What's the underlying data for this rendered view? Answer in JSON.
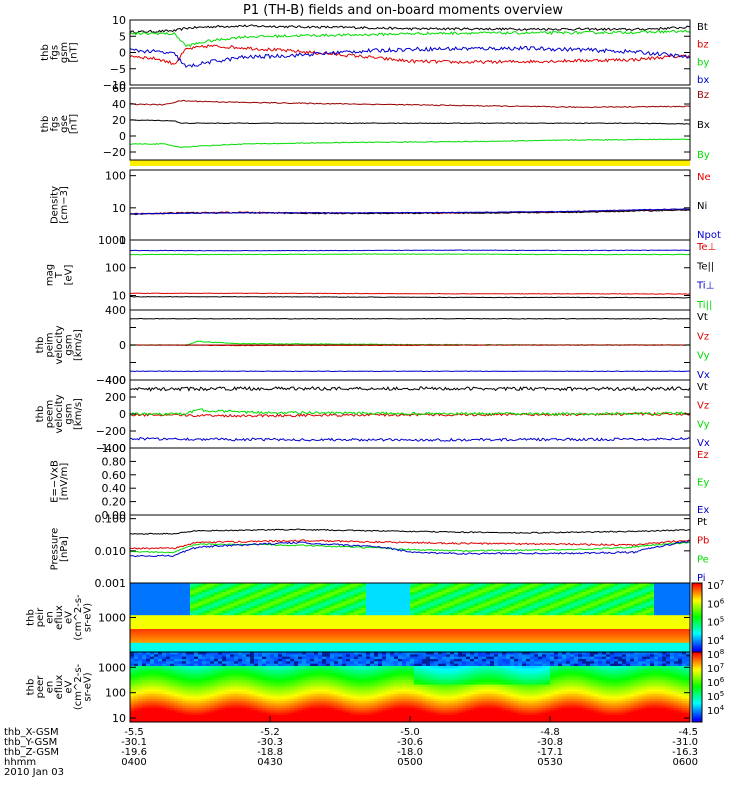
{
  "title": "P1 (TH-B) fields and on-board moments overview",
  "colors": {
    "black": "#000000",
    "red": "#e00000",
    "green": "#00dd00",
    "blue": "#0000cc",
    "darkred": "#990000",
    "yellow": "#ffee00"
  },
  "chart_data": [
    {
      "type": "line",
      "id": "fgs-gsm",
      "ylabel_lines": [
        "thb",
        "fgs",
        "gsm",
        "[nT]"
      ],
      "ylim": [
        -10,
        10
      ],
      "ticks": [
        -10,
        -5,
        0,
        5,
        10
      ],
      "tick_labels": [
        "−10",
        "−5",
        "0",
        "5",
        "10"
      ],
      "legend": [
        "Bt",
        "bz",
        "by",
        "bx"
      ],
      "series": [
        {
          "name": "Bt",
          "color": "black",
          "x": [
            0,
            0.05,
            0.08,
            0.1,
            0.14,
            0.2,
            0.3,
            0.4,
            0.5,
            0.6,
            0.7,
            0.8,
            0.9,
            0.95,
            1
          ],
          "y": [
            6.3,
            6.5,
            6.7,
            7.5,
            7.9,
            8.2,
            7.9,
            7.7,
            7.3,
            7.3,
            7.2,
            7.2,
            7.1,
            7.4,
            7.8
          ],
          "noise": 0.35
        },
        {
          "name": "bz",
          "color": "red",
          "x": [
            0,
            0.05,
            0.08,
            0.1,
            0.14,
            0.2,
            0.3,
            0.4,
            0.5,
            0.6,
            0.7,
            0.8,
            0.9,
            0.95,
            1
          ],
          "y": [
            -1,
            -2,
            -3.5,
            1,
            2,
            1.5,
            0.3,
            -1,
            -2.7,
            -3,
            -2.8,
            -2.5,
            -2.2,
            -1.5,
            -1
          ],
          "noise": 0.5
        },
        {
          "name": "by",
          "color": "green",
          "x": [
            0,
            0.05,
            0.08,
            0.1,
            0.14,
            0.2,
            0.3,
            0.4,
            0.5,
            0.6,
            0.7,
            0.8,
            0.9,
            0.95,
            1
          ],
          "y": [
            5.7,
            5.9,
            5.7,
            2,
            3.5,
            4.8,
            5.2,
            5.4,
            5.8,
            6,
            6,
            6.1,
            6.2,
            6.4,
            6.5
          ],
          "noise": 0.4
        },
        {
          "name": "bx",
          "color": "blue",
          "x": [
            0,
            0.05,
            0.08,
            0.1,
            0.14,
            0.2,
            0.3,
            0.4,
            0.5,
            0.6,
            0.7,
            0.8,
            0.9,
            0.95,
            1
          ],
          "y": [
            0.7,
            0.2,
            -0.5,
            -4.5,
            -3,
            -1.5,
            -0.8,
            0.3,
            1,
            1.2,
            1.3,
            0.9,
            0.2,
            -0.5,
            -1.5
          ],
          "noise": 0.6
        }
      ]
    },
    {
      "type": "line",
      "id": "fgs-gse",
      "ylabel_lines": [
        "thb",
        "fgs",
        "gse",
        "[nT]"
      ],
      "ylim": [
        -30,
        60
      ],
      "ticks": [
        -20,
        0,
        20,
        40,
        60
      ],
      "tick_labels": [
        "−20",
        "0",
        "20",
        "40",
        "60"
      ],
      "legend": [
        "Bz",
        "Bx",
        "By"
      ],
      "series": [
        {
          "name": "Bz",
          "color": "darkred",
          "x": [
            0,
            0.06,
            0.09,
            0.14,
            0.2,
            0.4,
            0.6,
            0.8,
            1
          ],
          "y": [
            40,
            39,
            44,
            43,
            42,
            40,
            38,
            36,
            37
          ],
          "noise": 0.6
        },
        {
          "name": "Bx",
          "color": "black",
          "x": [
            0,
            0.08,
            0.09,
            0.15,
            0.3,
            0.5,
            0.7,
            0.9,
            1
          ],
          "y": [
            20,
            19,
            16,
            16,
            16,
            16,
            16,
            16,
            15
          ],
          "noise": 0.4
        },
        {
          "name": "By",
          "color": "green",
          "x": [
            0,
            0.06,
            0.09,
            0.14,
            0.2,
            0.4,
            0.6,
            0.8,
            1
          ],
          "y": [
            -10,
            -10,
            -14,
            -12,
            -10,
            -8,
            -7,
            -5,
            -4
          ],
          "noise": 0.5
        }
      ]
    },
    {
      "type": "log-line",
      "id": "density",
      "ylabel_lines": [
        "Density",
        "[cm−3]"
      ],
      "ylim": [
        1,
        150
      ],
      "ticks": [
        1,
        10,
        100
      ],
      "tick_labels": [
        "1",
        "10",
        "100"
      ],
      "legend": [
        "Ne",
        "Ni",
        "Npot"
      ],
      "series": [
        {
          "name": "Ne",
          "color": "red",
          "x": [
            0,
            0.1,
            0.2,
            0.4,
            0.6,
            0.8,
            0.95,
            1
          ],
          "y": [
            6.5,
            7.0,
            7.2,
            6.8,
            7.0,
            7.5,
            8.5,
            8.8
          ],
          "noise": 0.05
        },
        {
          "name": "Ni",
          "color": "black",
          "x": [
            0,
            0.1,
            0.2,
            0.4,
            0.6,
            0.8,
            0.95,
            1
          ],
          "y": [
            6.3,
            6.9,
            7.0,
            6.7,
            6.9,
            7.3,
            8.3,
            8.6
          ],
          "noise": 0.04
        },
        {
          "name": "Npot",
          "color": "blue",
          "x": [
            0,
            0.1,
            0.2,
            0.4,
            0.6,
            0.8,
            0.95,
            1
          ],
          "y": [
            6.5,
            6.8,
            7.0,
            7.0,
            7.2,
            7.8,
            9.0,
            9.2
          ],
          "noise": 0.02
        }
      ]
    },
    {
      "type": "log-line",
      "id": "temperature",
      "ylabel_lines": [
        "mag",
        "T",
        "[eV]"
      ],
      "ylim": [
        3,
        1000
      ],
      "ticks": [
        10,
        100,
        1000
      ],
      "tick_labels": [
        "10",
        "100",
        "1000"
      ],
      "legend": [
        "Te⊥",
        "Te||",
        "Ti⊥",
        "Ti||"
      ],
      "series": [
        {
          "name": "Ti⊥",
          "color": "blue",
          "x": [
            0,
            0.2,
            0.4,
            0.6,
            0.8,
            1
          ],
          "y": [
            420,
            410,
            420,
            430,
            420,
            430
          ],
          "noise": 0.02
        },
        {
          "name": "Ti||",
          "color": "green",
          "x": [
            0,
            0.2,
            0.4,
            0.6,
            0.8,
            1
          ],
          "y": [
            300,
            300,
            310,
            310,
            300,
            300
          ],
          "noise": 0.02
        },
        {
          "name": "Te⊥",
          "color": "red",
          "x": [
            0,
            0.2,
            0.4,
            0.6,
            0.8,
            1
          ],
          "y": [
            12,
            12,
            11.8,
            11.5,
            11.5,
            11.3
          ],
          "noise": 0.02
        },
        {
          "name": "Te||",
          "color": "black",
          "x": [
            0,
            0.2,
            0.4,
            0.6,
            0.8,
            1
          ],
          "y": [
            9,
            9,
            8.8,
            8.5,
            8.5,
            8.3
          ],
          "noise": 0.02
        }
      ]
    },
    {
      "type": "line",
      "id": "peim-velocity",
      "ylabel_lines": [
        "thb",
        "peim",
        "velocity",
        "gsm",
        "[km/s]"
      ],
      "ylim": [
        -400,
        400
      ],
      "ticks": [
        -400,
        -200,
        0,
        200,
        400
      ],
      "tick_labels": [
        "−400",
        "",
        "0",
        "",
        "400"
      ],
      "legend": [
        "Vt",
        "Vz",
        "Vy",
        "Vx"
      ],
      "series": [
        {
          "name": "Vt",
          "color": "black",
          "x": [
            0,
            0.2,
            0.5,
            0.8,
            1
          ],
          "y": [
            300,
            300,
            300,
            300,
            300
          ],
          "noise": 3
        },
        {
          "name": "Vz",
          "color": "red",
          "x": [
            0,
            0.2,
            0.5,
            0.8,
            1
          ],
          "y": [
            0,
            -5,
            -3,
            0,
            0
          ],
          "noise": 3
        },
        {
          "name": "Vy",
          "color": "green",
          "x": [
            0,
            0.1,
            0.12,
            0.2,
            0.5,
            0.8,
            1
          ],
          "y": [
            0,
            0,
            40,
            15,
            5,
            0,
            0
          ],
          "noise": 4
        },
        {
          "name": "Vx",
          "color": "blue",
          "x": [
            0,
            0.2,
            0.5,
            0.8,
            1
          ],
          "y": [
            -300,
            -300,
            -300,
            -300,
            -300
          ],
          "noise": 3
        }
      ]
    },
    {
      "type": "line",
      "id": "peem-velocity",
      "ylabel_lines": [
        "thb",
        "peem",
        "velocity",
        "gsm",
        "[km/s]"
      ],
      "ylim": [
        -400,
        400
      ],
      "ticks": [
        -400,
        -200,
        0,
        200,
        400
      ],
      "tick_labels": [
        "−400",
        "−200",
        "0",
        "200",
        "400"
      ],
      "legend": [
        "Vt",
        "Vz",
        "Vy",
        "Vx"
      ],
      "series": [
        {
          "name": "Vt",
          "color": "black",
          "x": [
            0,
            0.2,
            0.5,
            0.8,
            1
          ],
          "y": [
            290,
            300,
            300,
            295,
            300
          ],
          "noise": 20
        },
        {
          "name": "Vz",
          "color": "red",
          "x": [
            0,
            0.2,
            0.5,
            0.8,
            1
          ],
          "y": [
            -10,
            -20,
            -10,
            -5,
            0
          ],
          "noise": 15
        },
        {
          "name": "Vy",
          "color": "green",
          "x": [
            0,
            0.1,
            0.12,
            0.2,
            0.5,
            0.8,
            1
          ],
          "y": [
            0,
            0,
            50,
            20,
            5,
            0,
            10
          ],
          "noise": 15
        },
        {
          "name": "Vx",
          "color": "blue",
          "x": [
            0,
            0.2,
            0.5,
            0.8,
            1
          ],
          "y": [
            -290,
            -300,
            -305,
            -300,
            -290
          ],
          "noise": 15
        }
      ]
    },
    {
      "type": "line",
      "id": "efield",
      "ylabel_lines": [
        "E=−VxB",
        "[mV/m]"
      ],
      "ylim": [
        0,
        1
      ],
      "ticks": [
        0,
        0.2,
        0.4,
        0.6,
        0.8,
        1
      ],
      "tick_labels": [
        "0.00",
        "0.20",
        "0.40",
        "0.60",
        "0.80",
        "1.00"
      ],
      "legend": [
        "Ez",
        "Ey",
        "Ex"
      ],
      "series": []
    },
    {
      "type": "log-line",
      "id": "pressure",
      "ylabel_lines": [
        "Pressure",
        "[nPa]"
      ],
      "ylim": [
        0.001,
        0.13
      ],
      "ticks": [
        0.001,
        0.01,
        0.1
      ],
      "tick_labels": [
        "0.001",
        "0.010",
        "0.100"
      ],
      "legend": [
        "Pt",
        "Pb",
        "Pe",
        "Pi"
      ],
      "series": [
        {
          "name": "Pt",
          "color": "black",
          "x": [
            0,
            0.08,
            0.12,
            0.3,
            0.5,
            0.7,
            0.9,
            1
          ],
          "y": [
            0.034,
            0.034,
            0.042,
            0.046,
            0.04,
            0.036,
            0.04,
            0.045
          ],
          "noise": 0.04
        },
        {
          "name": "Pb",
          "color": "red",
          "x": [
            0,
            0.08,
            0.12,
            0.3,
            0.5,
            0.6,
            0.8,
            0.9,
            0.95,
            1
          ],
          "y": [
            0.012,
            0.012,
            0.018,
            0.021,
            0.018,
            0.017,
            0.016,
            0.015,
            0.018,
            0.022
          ],
          "noise": 0.06
        },
        {
          "name": "Pe",
          "color": "green",
          "x": [
            0,
            0.08,
            0.12,
            0.3,
            0.5,
            0.6,
            0.8,
            0.9,
            0.95,
            1
          ],
          "y": [
            0.0095,
            0.009,
            0.016,
            0.015,
            0.011,
            0.01,
            0.011,
            0.013,
            0.016,
            0.018
          ],
          "noise": 0.05
        },
        {
          "name": "Pi",
          "color": "blue",
          "x": [
            0,
            0.08,
            0.12,
            0.3,
            0.45,
            0.5,
            0.6,
            0.8,
            0.9,
            0.95,
            1
          ],
          "y": [
            0.007,
            0.007,
            0.013,
            0.018,
            0.013,
            0.009,
            0.0082,
            0.0085,
            0.009,
            0.014,
            0.02
          ],
          "noise": 0.06
        }
      ]
    },
    {
      "type": "heatmap",
      "id": "peir",
      "ylabel_lines": [
        "thb",
        "peir",
        "en",
        "eflux",
        "eV",
        "(cm^2-s-",
        "sr-eV)"
      ],
      "ylim": [
        100,
        10000
      ],
      "ticks": [
        1000
      ],
      "tick_labels": [
        "1000"
      ],
      "colorbar": {
        "ticks": [
          "10^4",
          "10^5",
          "10^6",
          "10^7"
        ]
      }
    },
    {
      "type": "heatmap",
      "id": "peer",
      "ylabel_lines": [
        "thb",
        "peer",
        "en",
        "eflux",
        "eV",
        "(cm^2-s-",
        "sr-eV)"
      ],
      "ylim": [
        7,
        4000
      ],
      "ticks": [
        10,
        100,
        1000
      ],
      "tick_labels": [
        "10",
        "100",
        "1000"
      ],
      "colorbar": {
        "ticks": [
          "10^4",
          "10^5",
          "10^6",
          "10^7",
          "10^8"
        ]
      }
    }
  ],
  "time_axis": {
    "row_labels": [
      "thb_X-GSM",
      "thb_Y-GSM",
      "thb_Z-GSM",
      "hhmm",
      "2010 Jan 03"
    ],
    "columns": [
      {
        "x": "-5.5",
        "y": "-30.1",
        "z": "-19.6",
        "t": "0400"
      },
      {
        "x": "-5.2",
        "y": "-30.3",
        "z": "-18.8",
        "t": "0430"
      },
      {
        "x": "-5.0",
        "y": "-30.6",
        "z": "-18.0",
        "t": "0500"
      },
      {
        "x": "-4.8",
        "y": "-30.8",
        "z": "-17.1",
        "t": "0530"
      },
      {
        "x": "-4.5",
        "y": "-31.0",
        "z": "-16.3",
        "t": "0600"
      }
    ]
  }
}
